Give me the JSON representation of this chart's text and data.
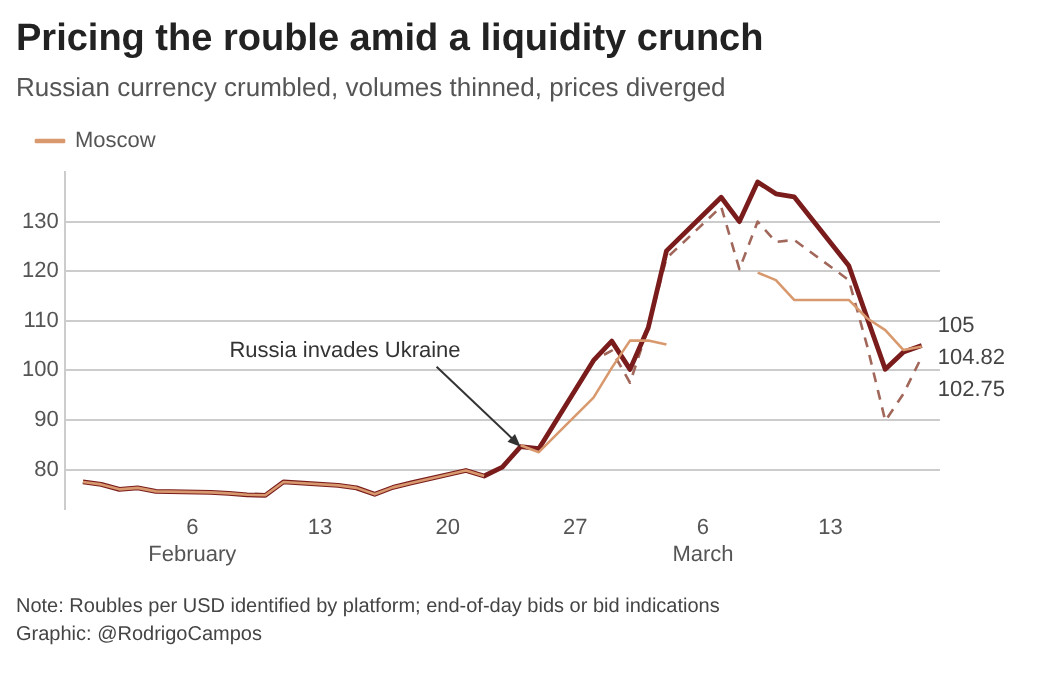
{
  "chart_data": {
    "type": "line",
    "title": "Pricing the rouble amid a liquidity crunch",
    "subtitle": "Russian currency crumbled, volumes thinned, prices diverged",
    "x": [
      "--01-31",
      "--02-01",
      "--02-02",
      "--02-03",
      "--02-04",
      "--02-07",
      "--02-08",
      "--02-09",
      "--02-10",
      "--02-11",
      "--02-14",
      "--02-15",
      "--02-16",
      "--02-17",
      "--02-18",
      "--02-21",
      "--02-22",
      "--02-23",
      "--02-24",
      "--02-25",
      "--02-28",
      "--03-01",
      "--03-02",
      "--03-03",
      "--03-04",
      "--03-07",
      "--03-08",
      "--03-09",
      "--03-10",
      "--03-11",
      "--03-14",
      "--03-15",
      "--03-16",
      "--03-17",
      "--03-18"
    ],
    "series": [
      {
        "name": "Moscow",
        "color": "#d9996e",
        "values": [
          77.5,
          77,
          76,
          76.3,
          75.6,
          75.4,
          75.2,
          74.9,
          74.8,
          77.5,
          76.8,
          76.3,
          75,
          76.4,
          77.3,
          79.8,
          78.7,
          null,
          84.9,
          83.5,
          94.5,
          100.5,
          106,
          106,
          105.2,
          null,
          null,
          119.7,
          118.2,
          114.2,
          114.2,
          110.5,
          108.1,
          104.1,
          104.82
        ],
        "value_labels": [
          null,
          null,
          null,
          null,
          null,
          null,
          null,
          null,
          null,
          null,
          null,
          null,
          null,
          null,
          null,
          null,
          null,
          null,
          null,
          null,
          null,
          null,
          null,
          null,
          null,
          null,
          null,
          null,
          null,
          null,
          null,
          null,
          null,
          null,
          "104.82"
        ]
      },
      {
        "color": "#7a1c1c",
        "values": [
          77.5,
          77,
          76,
          76.3,
          75.6,
          75.4,
          75.2,
          74.9,
          74.8,
          77.5,
          76.8,
          76.3,
          75,
          76.4,
          77.3,
          79.8,
          78.7,
          80.5,
          84.6,
          84.2,
          102,
          105.9,
          100.2,
          108.6,
          124.1,
          134.9,
          130,
          138,
          135.6,
          135,
          121.1,
          110.6,
          100.2,
          103.7,
          105
        ],
        "value_labels": [
          null,
          null,
          null,
          null,
          null,
          null,
          null,
          null,
          null,
          null,
          null,
          null,
          null,
          null,
          null,
          null,
          null,
          null,
          null,
          null,
          null,
          null,
          null,
          null,
          null,
          null,
          null,
          null,
          null,
          null,
          null,
          null,
          null,
          null,
          "105"
        ]
      },
      {
        "color": "#a0675a",
        "line_style": "dashed",
        "values": [
          77.5,
          77,
          76,
          76.3,
          75.6,
          75.4,
          75.2,
          74.9,
          74.8,
          77.5,
          76.8,
          76.3,
          75,
          76.4,
          77.3,
          79.8,
          78.7,
          80.5,
          84.6,
          84.2,
          102,
          104,
          97.5,
          108.6,
          122.6,
          133,
          120.4,
          130,
          125.9,
          126.3,
          118.2,
          105,
          89.8,
          95.3,
          102.75
        ],
        "value_labels": [
          null,
          null,
          null,
          null,
          null,
          null,
          null,
          null,
          null,
          null,
          null,
          null,
          null,
          null,
          null,
          null,
          null,
          null,
          null,
          null,
          null,
          null,
          null,
          null,
          null,
          null,
          null,
          null,
          null,
          null,
          null,
          null,
          null,
          null,
          "102.75"
        ]
      }
    ],
    "xlim": [
      "--01-30",
      "--03-19"
    ],
    "xticks": [
      {
        "value": "--02-06",
        "label": "6\nFebruary"
      },
      {
        "value": "--02-13",
        "label": "13"
      },
      {
        "value": "--02-20",
        "label": "20"
      },
      {
        "value": "--02-27",
        "label": "27"
      },
      {
        "value": "--03-06",
        "label": "6\nMarch"
      },
      {
        "value": "--03-13",
        "label": "13"
      }
    ],
    "ylim": [
      72,
      140
    ],
    "yticks": [
      80,
      90,
      100,
      110,
      120,
      130
    ],
    "grid": "y",
    "legend": "top left",
    "marker": "none",
    "annotations": [
      {
        "text": "Russia invades Ukraine",
        "x": "--02-24",
        "y": 84.6
      },
      "Note: Roubles per USD identified by platform; end-of-day bids or bid indications",
      "Graphic: @RodrigoCampos"
    ]
  }
}
